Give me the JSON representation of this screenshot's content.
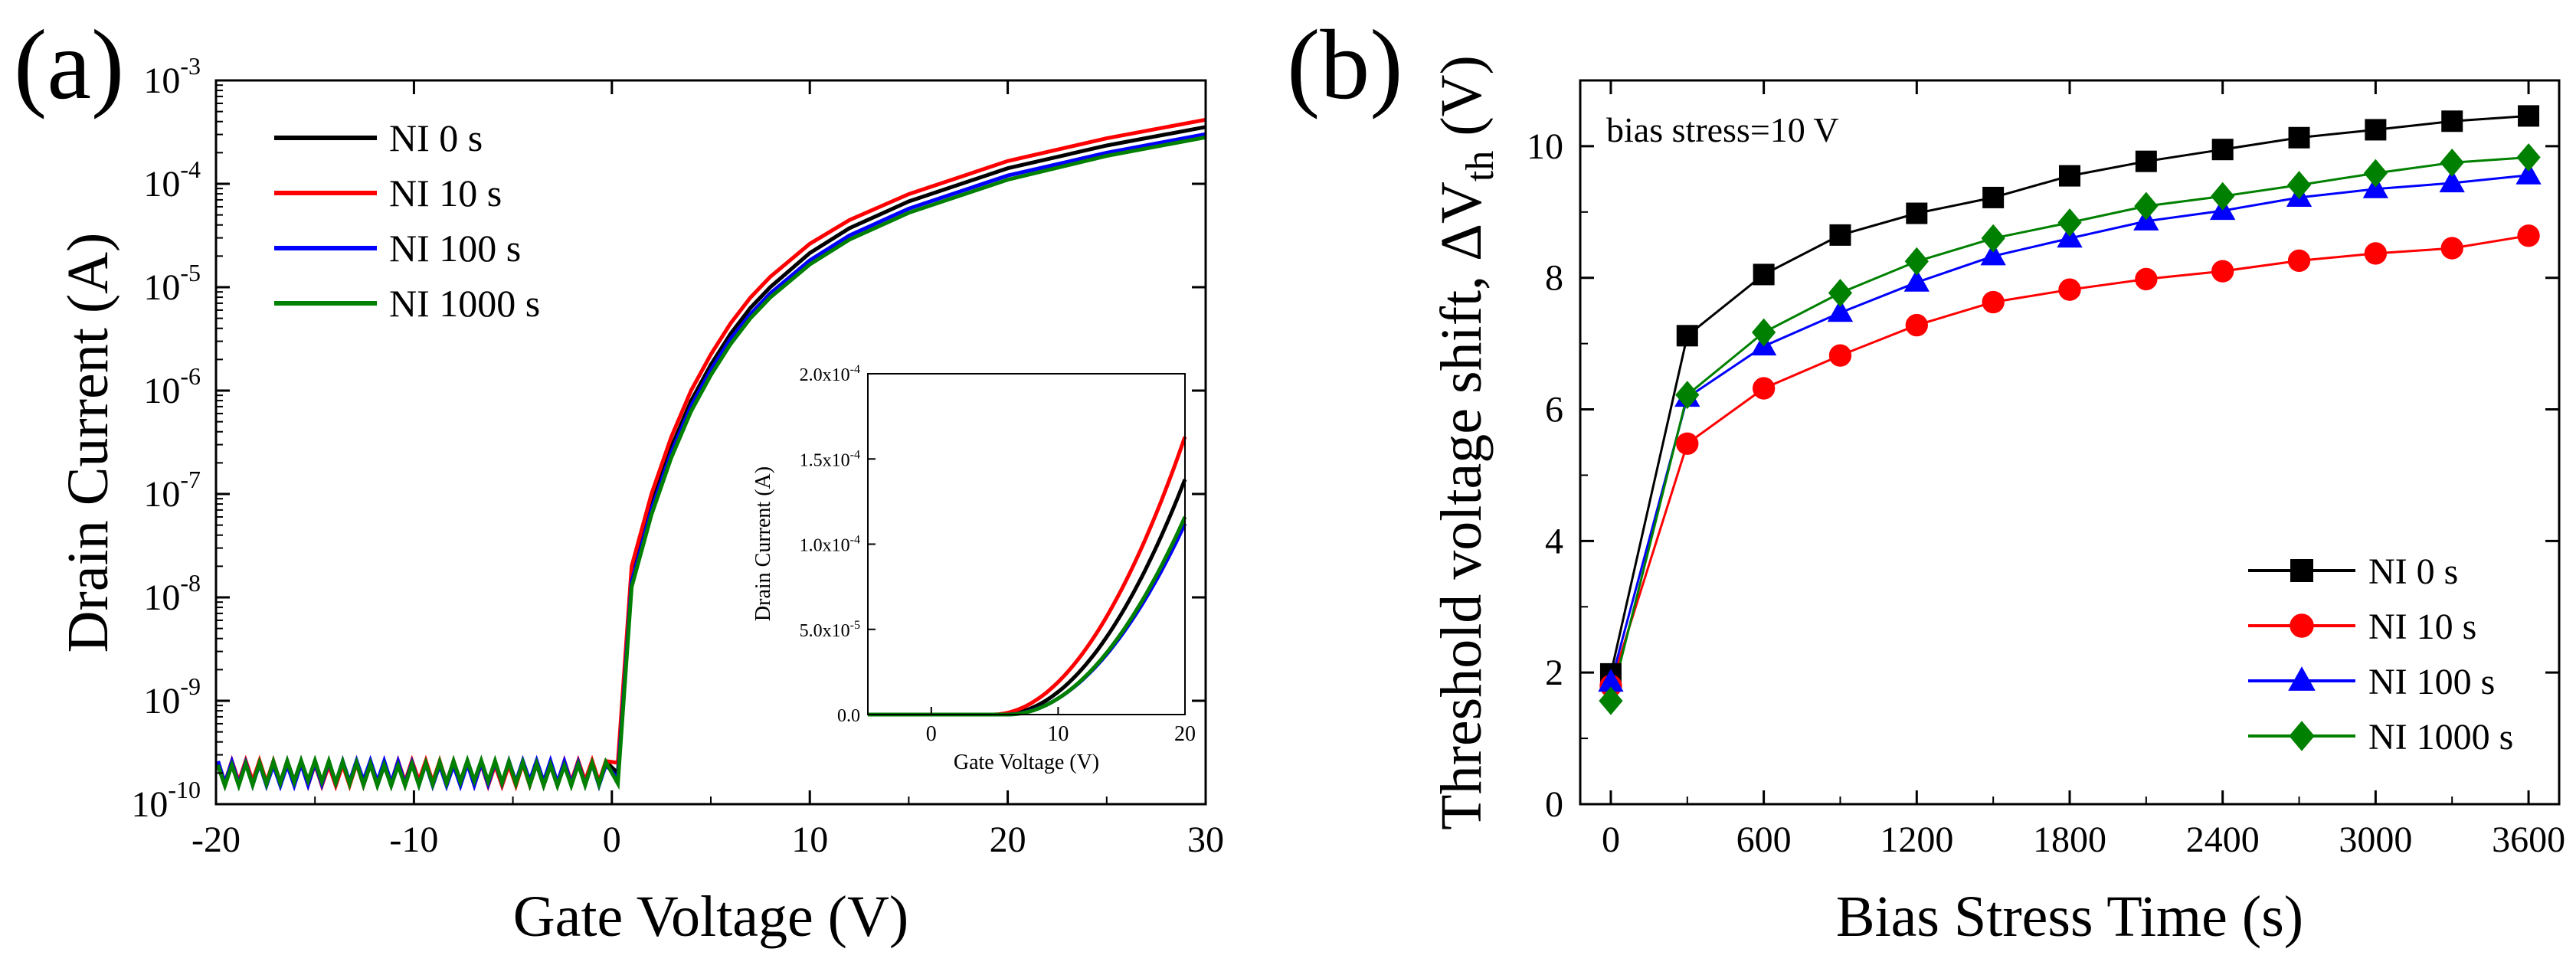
{
  "panels": {
    "a_label": "(a)",
    "b_label": "(b)"
  },
  "chart_data": [
    {
      "id": "a",
      "type": "line",
      "title": "",
      "xlabel": "Gate Voltage (V)",
      "ylabel": "Drain Current (A)",
      "xlim": [
        -20,
        30
      ],
      "ylim_log10": [
        -10,
        -3
      ],
      "yscale": "log",
      "xticks": [
        -20,
        -10,
        0,
        10,
        20,
        30
      ],
      "xtick_labels": [
        "-20",
        "-10",
        "0",
        "10",
        "20",
        "30"
      ],
      "ytick_exponents": [
        -10,
        -9,
        -8,
        -7,
        -6,
        -5,
        -4,
        -3
      ],
      "ytick_labels": [
        "10",
        "10",
        "10",
        "10",
        "10",
        "10",
        "10",
        "10"
      ],
      "ytick_superscripts": [
        "-10",
        "-9",
        "-8",
        "-7",
        "-6",
        "-5",
        "-4",
        "-3"
      ],
      "legend": {
        "placement": "top-left",
        "entries": [
          "NI 0 s",
          "NI 10 s",
          "NI 100 s",
          "NI 1000 s"
        ]
      },
      "series": [
        {
          "name": "NI 0 s",
          "color": "#000000",
          "x": [
            0.3,
            1,
            2,
            3,
            4,
            5,
            6,
            7,
            8,
            10,
            12,
            15,
            20,
            25,
            30
          ],
          "log10y": [
            -9.7,
            -7.8,
            -7.1,
            -6.55,
            -6.1,
            -5.75,
            -5.45,
            -5.2,
            -5.0,
            -4.67,
            -4.43,
            -4.17,
            -3.85,
            -3.63,
            -3.45
          ]
        },
        {
          "name": "NI 10 s",
          "color": "#ff0000",
          "x": [
            0.3,
            1,
            2,
            3,
            4,
            5,
            6,
            7,
            8,
            10,
            12,
            15,
            20,
            25,
            30
          ],
          "log10y": [
            -9.6,
            -7.7,
            -7.0,
            -6.45,
            -6.0,
            -5.65,
            -5.35,
            -5.1,
            -4.9,
            -4.58,
            -4.35,
            -4.1,
            -3.78,
            -3.56,
            -3.38
          ]
        },
        {
          "name": "NI 100 s",
          "color": "#0000ff",
          "x": [
            0.3,
            1,
            2,
            3,
            4,
            5,
            6,
            7,
            8,
            10,
            12,
            15,
            20,
            25,
            30
          ],
          "log10y": [
            -9.75,
            -7.85,
            -7.15,
            -6.6,
            -6.15,
            -5.8,
            -5.5,
            -5.26,
            -5.06,
            -4.74,
            -4.5,
            -4.24,
            -3.92,
            -3.7,
            -3.52
          ]
        },
        {
          "name": "NI 1000 s",
          "color": "#008000",
          "x": [
            0.3,
            1,
            2,
            3,
            4,
            5,
            6,
            7,
            8,
            10,
            12,
            15,
            20,
            25,
            30
          ],
          "log10y": [
            -9.8,
            -7.9,
            -7.2,
            -6.65,
            -6.2,
            -5.85,
            -5.55,
            -5.3,
            -5.1,
            -4.78,
            -4.54,
            -4.28,
            -3.96,
            -3.73,
            -3.55
          ]
        }
      ],
      "off_state_noise": {
        "log10_center": -9.7,
        "log10_amplitude": 0.12,
        "x_range": [
          -20,
          0
        ]
      },
      "inset": {
        "type": "line",
        "xlabel": "Gate Voltage (V)",
        "ylabel": "Drain Current (A)",
        "xlim": [
          -5,
          20
        ],
        "ylim": [
          0,
          0.0002
        ],
        "xticks": [
          0,
          10,
          20
        ],
        "xtick_labels": [
          "0",
          "10",
          "20"
        ],
        "yticks": [
          0,
          5e-05,
          0.0001,
          0.00015,
          0.0002
        ],
        "ytick_labels": [
          "0.0",
          "5.0x10",
          "1.0x10",
          "1.5x10",
          "2.0x10"
        ],
        "ytick_superscripts": [
          "",
          "-5",
          "-4",
          "-4",
          "-4"
        ],
        "series": [
          {
            "name": "NI 0 s",
            "color": "#000000",
            "threshold": 5.5,
            "value_at_20": 0.000138
          },
          {
            "name": "NI 10 s",
            "color": "#ff0000",
            "threshold": 4.8,
            "value_at_20": 0.000163
          },
          {
            "name": "NI 100 s",
            "color": "#0000ff",
            "threshold": 5.9,
            "value_at_20": 0.000112
          },
          {
            "name": "NI 1000 s",
            "color": "#008000",
            "threshold": 6.0,
            "value_at_20": 0.000116
          }
        ]
      }
    },
    {
      "id": "b",
      "type": "line",
      "title": "",
      "annotation": "bias stress=10 V",
      "xlabel": "Bias Stress Time (s)",
      "ylabel_main": "Threshold voltage shift, ΔV",
      "ylabel_sub": "th",
      "ylabel_unit": " (V)",
      "xlim": [
        -120,
        3720
      ],
      "ylim": [
        0,
        11
      ],
      "xticks": [
        0,
        600,
        1200,
        1800,
        2400,
        3000,
        3600
      ],
      "xtick_labels": [
        "0",
        "600",
        "1200",
        "1800",
        "2400",
        "3000",
        "3600"
      ],
      "yticks": [
        0,
        2,
        4,
        6,
        8,
        10
      ],
      "ytick_labels": [
        "0",
        "2",
        "4",
        "6",
        "8",
        "10"
      ],
      "legend": {
        "placement": "bottom-right",
        "entries": [
          "NI 0 s",
          "NI 10 s",
          "NI 100 s",
          "NI 1000 s"
        ]
      },
      "x": [
        0,
        300,
        600,
        900,
        1200,
        1500,
        1800,
        2100,
        2400,
        2700,
        3000,
        3300,
        3600
      ],
      "series": [
        {
          "name": "NI 0 s",
          "color": "#000000",
          "marker": "square",
          "values": [
            1.98,
            7.12,
            8.05,
            8.65,
            8.98,
            9.22,
            9.55,
            9.77,
            9.95,
            10.13,
            10.25,
            10.38,
            10.46
          ]
        },
        {
          "name": "NI 10 s",
          "color": "#ff0000",
          "marker": "circle",
          "values": [
            1.8,
            5.48,
            6.32,
            6.82,
            7.28,
            7.63,
            7.82,
            7.98,
            8.1,
            8.26,
            8.37,
            8.45,
            8.64
          ]
        },
        {
          "name": "NI 100 s",
          "color": "#0000ff",
          "marker": "triangle",
          "values": [
            1.85,
            6.18,
            6.96,
            7.47,
            7.93,
            8.33,
            8.6,
            8.86,
            9.02,
            9.22,
            9.35,
            9.44,
            9.56
          ]
        },
        {
          "name": "NI 1000 s",
          "color": "#008000",
          "marker": "diamond",
          "values": [
            1.57,
            6.22,
            7.17,
            7.77,
            8.25,
            8.6,
            8.84,
            9.09,
            9.24,
            9.41,
            9.59,
            9.75,
            9.83
          ]
        }
      ]
    }
  ]
}
